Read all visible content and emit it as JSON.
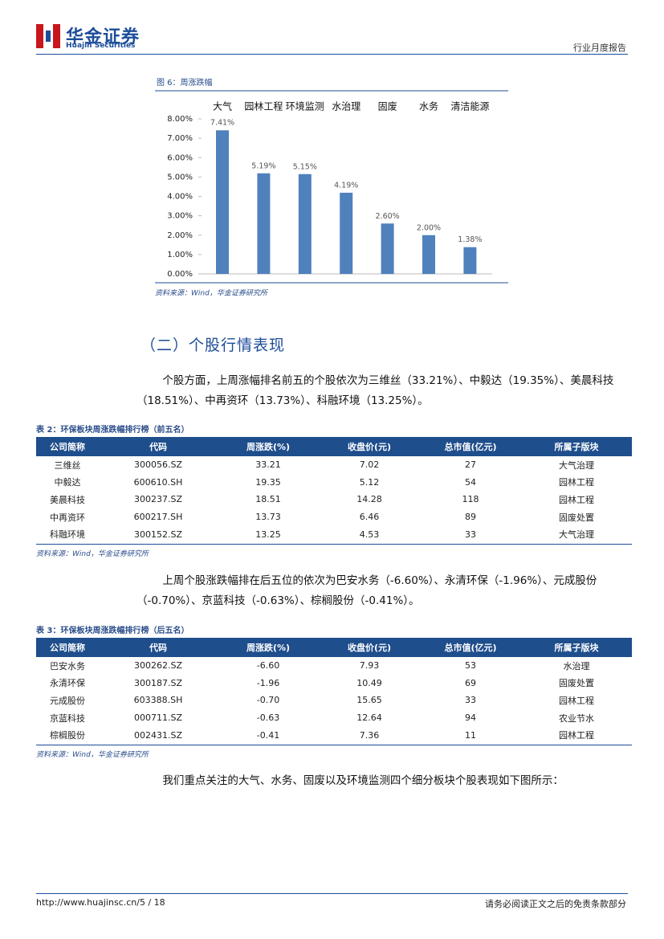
{
  "header": {
    "logo_cn": "华金证券",
    "logo_en": "Huajin Securities",
    "report_type": "行业月度报告"
  },
  "figure": {
    "label": "图 6：周涨跌幅",
    "source": "资料来源：Wind，华金证券研究所",
    "chart_data": {
      "type": "bar",
      "categories": [
        "大气",
        "园林工程",
        "环境监测",
        "水治理",
        "固废",
        "水务",
        "清洁能源"
      ],
      "values": [
        7.41,
        5.19,
        5.15,
        4.19,
        2.6,
        2.0,
        1.38
      ],
      "value_labels": [
        "7.41%",
        "5.19%",
        "5.15%",
        "4.19%",
        "2.60%",
        "2.00%",
        "1.38%"
      ],
      "color": "#4f81bd",
      "ylim": [
        0,
        8
      ],
      "yticks": [
        {
          "value": 0,
          "label": "0.00%"
        },
        {
          "value": 1,
          "label": "1.00%"
        },
        {
          "value": 2,
          "label": "2.00%"
        },
        {
          "value": 3,
          "label": "3.00%"
        },
        {
          "value": 4,
          "label": "4.00%"
        },
        {
          "value": 5,
          "label": "5.00%"
        },
        {
          "value": 6,
          "label": "6.00%"
        },
        {
          "value": 7,
          "label": "7.00%"
        },
        {
          "value": 8,
          "label": "8.00%"
        }
      ],
      "grid": false
    }
  },
  "section": {
    "heading": "（二）个股行情表现"
  },
  "paragraphs": [
    "个股方面，上周涨幅排名前五的个股依次为三维丝（33.21%）、中毅达（19.35%）、美晨科技（18.51%）、中再资环（13.73%）、科融环境（13.25%）。",
    "上周个股涨跌幅排在后五位的依次为巴安水务（-6.60%）、永清环保（-1.96%）、元成股份（-0.70%）、京蓝科技（-0.63%）、棕榈股份（-0.41%）。",
    "我们重点关注的大气、水务、固废以及环境监测四个细分板块个股表现如下图所示："
  ],
  "tables": [
    {
      "title": "表 2：环保板块周涨跌幅排行榜（前五名）",
      "source": "资料来源：Wind，华金证券研究所",
      "columns": [
        "公司简称",
        "代码",
        "周涨跌(%)",
        "收盘价(元)",
        "总市值(亿元)",
        "所属子版块"
      ],
      "rows": [
        [
          "三维丝",
          "300056.SZ",
          "33.21",
          "7.02",
          "27",
          "大气治理"
        ],
        [
          "中毅达",
          "600610.SH",
          "19.35",
          "5.12",
          "54",
          "园林工程"
        ],
        [
          "美晨科技",
          "300237.SZ",
          "18.51",
          "14.28",
          "118",
          "园林工程"
        ],
        [
          "中再资环",
          "600217.SH",
          "13.73",
          "6.46",
          "89",
          "固废处置"
        ],
        [
          "科融环境",
          "300152.SZ",
          "13.25",
          "4.53",
          "33",
          "大气治理"
        ]
      ]
    },
    {
      "title": "表 3：环保板块周涨跌幅排行榜（后五名）",
      "source": "资料来源：Wind，华金证券研究所",
      "columns": [
        "公司简称",
        "代码",
        "周涨跌(%)",
        "收盘价(元)",
        "总市值(亿元)",
        "所属子版块"
      ],
      "rows": [
        [
          "巴安水务",
          "300262.SZ",
          "-6.60",
          "7.93",
          "53",
          "水治理"
        ],
        [
          "永清环保",
          "300187.SZ",
          "-1.96",
          "10.49",
          "69",
          "固废处置"
        ],
        [
          "元成股份",
          "603388.SH",
          "-0.70",
          "15.65",
          "33",
          "园林工程"
        ],
        [
          "京蓝科技",
          "000711.SZ",
          "-0.63",
          "12.64",
          "94",
          "农业节水"
        ],
        [
          "棕榈股份",
          "002431.SZ",
          "-0.41",
          "7.36",
          "11",
          "园林工程"
        ]
      ]
    }
  ],
  "footer": {
    "url": "http://www.huajinsc.cn/5 / 18",
    "disclaimer": "请务必阅读正文之后的免责条款部分"
  }
}
